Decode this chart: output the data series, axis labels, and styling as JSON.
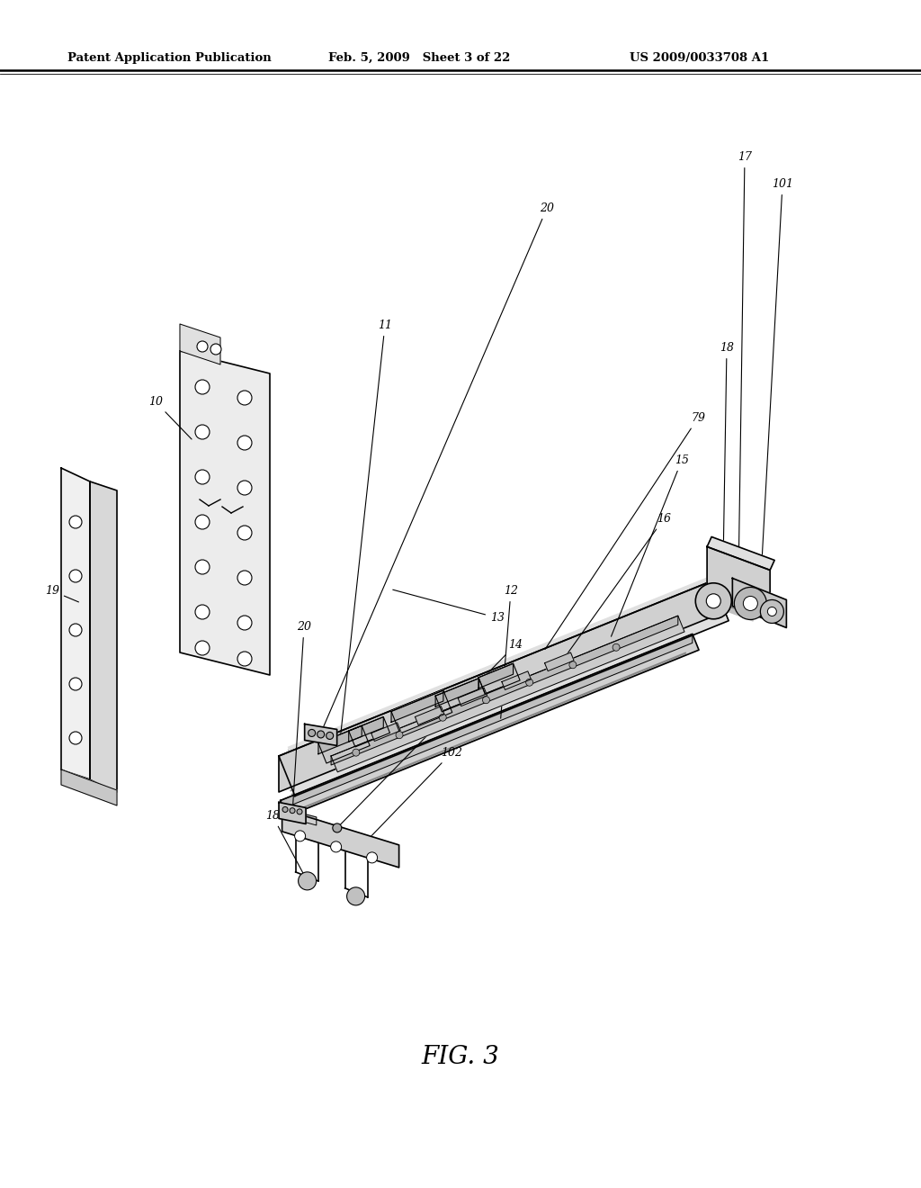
{
  "header_left": "Patent Application Publication",
  "header_mid": "Feb. 5, 2009   Sheet 3 of 22",
  "header_right": "US 2009/0033708 A1",
  "figure_label": "FIG. 3",
  "background_color": "#ffffff",
  "line_color": "#000000"
}
